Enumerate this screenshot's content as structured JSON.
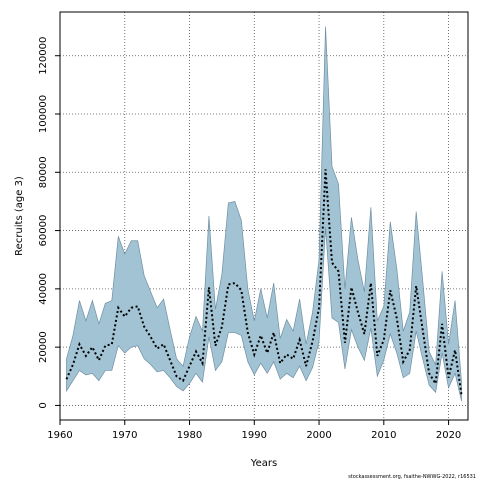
{
  "chart_data": {
    "type": "area",
    "title": "",
    "xlabel": "Years",
    "ylabel": "Recruits (age 3)",
    "xlim": [
      1960,
      2023
    ],
    "ylim": [
      -5000,
      135000
    ],
    "x_ticks": [
      1960,
      1970,
      1980,
      1990,
      2000,
      2010,
      2020
    ],
    "y_ticks": [
      0,
      20000,
      40000,
      60000,
      80000,
      100000,
      120000
    ],
    "grid": true,
    "colors": {
      "band_fill": "#a2c3d4",
      "band_edge": "#6f8fa3",
      "estimate_line": "#000000"
    },
    "series": [
      {
        "type": "band",
        "x": [
          1961,
          1962,
          1963,
          1964,
          1965,
          1966,
          1967,
          1968,
          1969,
          1970,
          1971,
          1972,
          1973,
          1974,
          1975,
          1976,
          1977,
          1978,
          1979,
          1980,
          1981,
          1982,
          1983,
          1984,
          1985,
          1986,
          1987,
          1988,
          1989,
          1990,
          1991,
          1992,
          1993,
          1994,
          1995,
          1996,
          1997,
          1998,
          1999,
          2000,
          2001,
          2002,
          2003,
          2004,
          2005,
          2006,
          2007,
          2008,
          2009,
          2010,
          2011,
          2012,
          2013,
          2014,
          2015,
          2016,
          2017,
          2018,
          2019,
          2020,
          2021,
          2022
        ],
        "upper": [
          16000,
          24000,
          36000,
          29000,
          36000,
          28000,
          35000,
          36000,
          58000,
          52000,
          56500,
          56500,
          44500,
          39000,
          33500,
          36500,
          26000,
          16000,
          13500,
          23500,
          30500,
          25500,
          65000,
          33000,
          45000,
          69500,
          70000,
          63500,
          40000,
          29000,
          40000,
          30000,
          42000,
          23000,
          29500,
          25500,
          36500,
          21000,
          32000,
          50000,
          130000,
          82000,
          76000,
          40000,
          64500,
          50000,
          39000,
          68000,
          29000,
          34000,
          63000,
          47000,
          25500,
          32000,
          66500,
          43000,
          18500,
          14000,
          46000,
          21000,
          36000,
          8000
        ],
        "lower": [
          5000,
          8500,
          12000,
          10500,
          11000,
          8500,
          12000,
          12000,
          20500,
          18000,
          20000,
          20500,
          16000,
          14000,
          11500,
          12000,
          9500,
          6500,
          5000,
          7500,
          11000,
          8000,
          23500,
          12000,
          15000,
          25000,
          25000,
          24000,
          15000,
          10500,
          14500,
          11000,
          15000,
          9000,
          11000,
          9500,
          13500,
          8500,
          13000,
          22000,
          61000,
          30000,
          28500,
          12500,
          26000,
          20000,
          15500,
          26500,
          10000,
          15500,
          24500,
          18000,
          9500,
          11000,
          25500,
          16000,
          7000,
          4500,
          18000,
          6000,
          11000,
          1500
        ]
      },
      {
        "type": "line",
        "name": "",
        "x": [
          1961,
          1962,
          1963,
          1964,
          1965,
          1966,
          1967,
          1968,
          1969,
          1970,
          1971,
          1972,
          1973,
          1974,
          1975,
          1976,
          1977,
          1978,
          1979,
          1980,
          1981,
          1982,
          1983,
          1984,
          1985,
          1986,
          1987,
          1988,
          1989,
          1990,
          1991,
          1992,
          1993,
          1994,
          1995,
          1996,
          1997,
          1998,
          1999,
          2000,
          2001,
          2002,
          2003,
          2004,
          2005,
          2006,
          2007,
          2008,
          2009,
          2010,
          2011,
          2012,
          2013,
          2014,
          2015,
          2016,
          2017,
          2018,
          2019,
          2020,
          2021,
          2022
        ],
        "values": [
          9000,
          14000,
          21000,
          17000,
          20000,
          15500,
          20500,
          21000,
          33500,
          30500,
          33500,
          34000,
          27000,
          23500,
          19500,
          21000,
          15500,
          10000,
          8500,
          13500,
          18500,
          14500,
          40500,
          20500,
          27000,
          41500,
          42000,
          39500,
          25000,
          17500,
          24000,
          18000,
          25000,
          14500,
          17500,
          16000,
          22500,
          13500,
          22000,
          33500,
          81000,
          49000,
          46000,
          21500,
          40500,
          32000,
          24500,
          42000,
          17000,
          22500,
          39500,
          30000,
          15000,
          19000,
          41000,
          26000,
          11000,
          7500,
          28000,
          9500,
          19000,
          3500
        ]
      }
    ],
    "credit": "stockassessment.org, fsaithe-NWWG-2022, r16531"
  }
}
